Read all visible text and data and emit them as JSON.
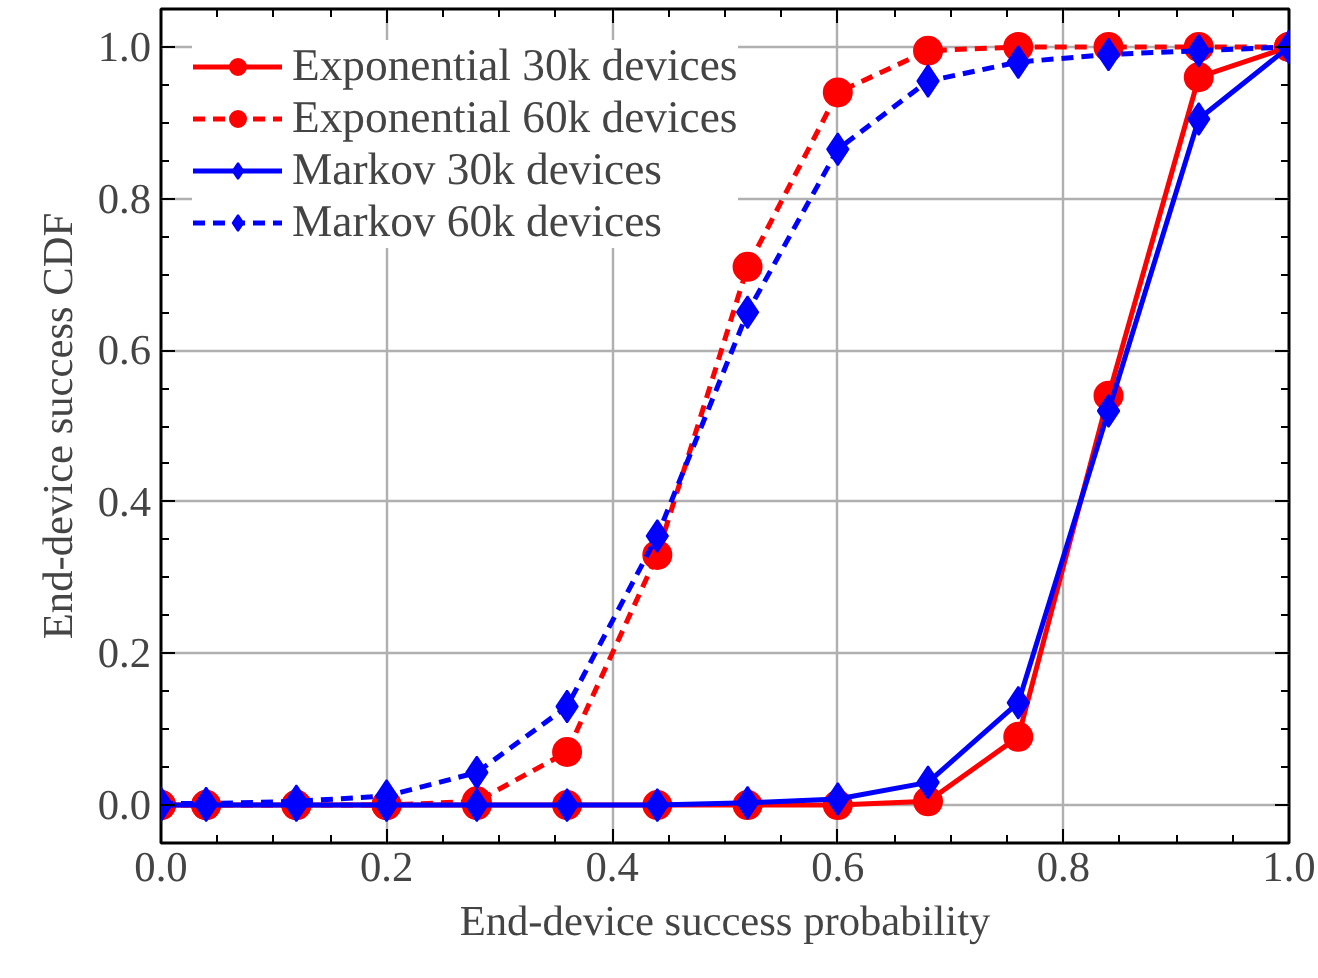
{
  "chart_data": {
    "type": "line",
    "xlabel": "End-device success probability",
    "ylabel": "End-device success CDF",
    "x": [
      0,
      0.04,
      0.12,
      0.2,
      0.28,
      0.36,
      0.44,
      0.52,
      0.6,
      0.68,
      0.76,
      0.84,
      0.92,
      1.0
    ],
    "series": [
      {
        "name": "Exponential 30k devices",
        "color": "#ff0000",
        "marker": "circle",
        "line_style": "solid",
        "values": [
          0,
          0,
          0,
          0,
          0,
          0,
          0,
          0,
          0,
          0.005,
          0.09,
          0.54,
          0.96,
          1.0
        ]
      },
      {
        "name": "Exponential 60k devices",
        "color": "#ff0000",
        "marker": "circle",
        "line_style": "dashed",
        "values": [
          0,
          0,
          0,
          0,
          0.005,
          0.07,
          0.33,
          0.71,
          0.94,
          0.995,
          1.0,
          1.0,
          1.0,
          1.0
        ]
      },
      {
        "name": "Markov 30k devices",
        "color": "#0000ff",
        "marker": "diamond",
        "line_style": "solid",
        "values": [
          0,
          0,
          0,
          0,
          0,
          0,
          0,
          0.003,
          0.008,
          0.03,
          0.135,
          0.52,
          0.905,
          1.0
        ]
      },
      {
        "name": "Markov 60k devices",
        "color": "#0000ff",
        "marker": "diamond",
        "line_style": "dashed",
        "values": [
          0.002,
          0.002,
          0.005,
          0.012,
          0.043,
          0.13,
          0.355,
          0.65,
          0.865,
          0.955,
          0.98,
          0.99,
          0.995,
          1.0
        ]
      }
    ],
    "xlim": [
      0,
      1.0
    ],
    "ylim": [
      -0.05,
      1.05
    ],
    "xticks": [
      {
        "value": 0,
        "label": "0.0"
      },
      {
        "value": 0.2,
        "label": "0.2"
      },
      {
        "value": 0.4,
        "label": "0.4"
      },
      {
        "value": 0.6,
        "label": "0.6"
      },
      {
        "value": 0.8,
        "label": "0.8"
      },
      {
        "value": 1.0,
        "label": "1.0"
      }
    ],
    "yticks": [
      {
        "value": 0,
        "label": "0.0"
      },
      {
        "value": 0.2,
        "label": "0.2"
      },
      {
        "value": 0.4,
        "label": "0.4"
      },
      {
        "value": 0.6,
        "label": "0.6"
      },
      {
        "value": 0.8,
        "label": "0.8"
      },
      {
        "value": 1.0,
        "label": "1.0"
      }
    ],
    "grid": true,
    "legend": "top left"
  }
}
